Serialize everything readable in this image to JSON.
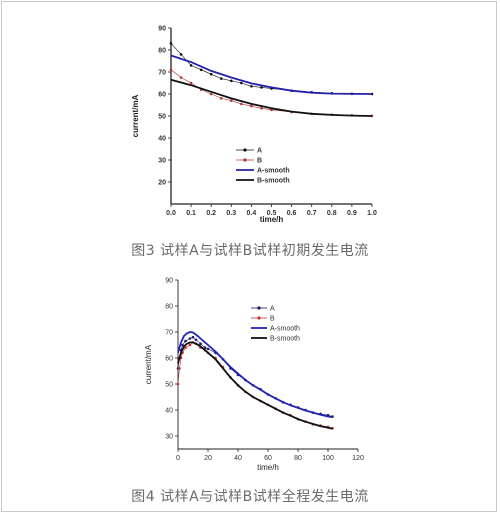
{
  "captions": {
    "fig3": "图3  试样A与试样B试样初期发生电流",
    "fig4": "图4 试样A与试样B试样全程发生电流"
  },
  "chart_data": [
    {
      "type": "line",
      "title": "",
      "xlabel": "time/h",
      "ylabel": "current/mA",
      "xlim": [
        0.0,
        1.0
      ],
      "ylim": [
        10,
        90
      ],
      "xticks": [
        "0.0",
        "0.1",
        "0.2",
        "0.3",
        "0.4",
        "0.5",
        "0.6",
        "0.7",
        "0.8",
        "0.9",
        "1.0"
      ],
      "yticks": [
        "20",
        "30",
        "40",
        "50",
        "60",
        "70",
        "80",
        "90"
      ],
      "grid": false,
      "legend_position": "center",
      "series": [
        {
          "name": "A",
          "color": "#111111",
          "style": "marker",
          "x": [
            0.0,
            0.05,
            0.1,
            0.15,
            0.2,
            0.25,
            0.3,
            0.35,
            0.4,
            0.45,
            0.5,
            0.6,
            0.7,
            0.8,
            0.9,
            1.0
          ],
          "y": [
            83,
            78,
            73,
            71,
            69,
            67,
            66,
            65,
            63.5,
            63,
            62.5,
            61.5,
            60.8,
            60.3,
            60.1,
            60
          ]
        },
        {
          "name": "B",
          "color": "#b33333",
          "style": "marker",
          "x": [
            0.0,
            0.05,
            0.1,
            0.15,
            0.2,
            0.25,
            0.3,
            0.35,
            0.4,
            0.45,
            0.5,
            0.6,
            0.7,
            0.8,
            0.9,
            1.0
          ],
          "y": [
            71,
            67.5,
            65,
            62,
            60,
            58,
            57,
            55.5,
            54.5,
            53.5,
            52.8,
            51.8,
            51,
            50.6,
            50.3,
            50.1
          ]
        },
        {
          "name": "A-smooth",
          "color": "#2222aa",
          "style": "line",
          "x": [
            0.0,
            0.1,
            0.2,
            0.3,
            0.4,
            0.5,
            0.6,
            0.7,
            0.8,
            0.9,
            1.0
          ],
          "y": [
            77.5,
            74.5,
            70.5,
            67.5,
            64.8,
            63,
            61.5,
            60.6,
            60.2,
            60.05,
            60
          ]
        },
        {
          "name": "B-smooth",
          "color": "#111111",
          "style": "line",
          "x": [
            0.0,
            0.1,
            0.2,
            0.3,
            0.4,
            0.5,
            0.6,
            0.7,
            0.8,
            0.9,
            1.0
          ],
          "y": [
            66.5,
            64,
            61,
            58,
            55.5,
            53.5,
            52,
            51,
            50.5,
            50.2,
            50
          ]
        }
      ]
    },
    {
      "type": "line",
      "title": "",
      "xlabel": "time/h",
      "ylabel": "current/mA",
      "xlim": [
        0,
        120
      ],
      "ylim": [
        25,
        90
      ],
      "xticks": [
        "0",
        "20",
        "40",
        "60",
        "80",
        "100",
        "120"
      ],
      "yticks": [
        "30",
        "40",
        "50",
        "60",
        "70",
        "80",
        "90"
      ],
      "grid": false,
      "legend_position": "top-right",
      "series": [
        {
          "name": "A",
          "color": "#1a1a66",
          "style": "marker",
          "x": [
            0,
            1,
            2,
            3,
            5,
            8,
            10,
            12,
            15,
            18,
            20,
            25,
            30,
            35,
            40,
            45,
            50,
            55,
            60,
            65,
            70,
            75,
            80,
            85,
            90,
            95,
            100,
            103
          ],
          "y": [
            56,
            60,
            63,
            65,
            66.5,
            67.5,
            68,
            67,
            65.5,
            64,
            63.5,
            62,
            59.5,
            56,
            53.5,
            51.5,
            49.5,
            48,
            46,
            44.5,
            43,
            42,
            41,
            40,
            39,
            38.5,
            38,
            37.5
          ]
        },
        {
          "name": "B",
          "color": "#c03030",
          "style": "marker",
          "x": [
            0,
            1,
            2,
            3,
            5,
            8,
            10,
            12,
            15,
            18,
            20,
            25,
            30,
            35,
            40,
            45,
            50,
            55,
            60,
            65,
            70,
            75,
            80,
            85,
            90,
            95,
            100,
            103
          ],
          "y": [
            50,
            56,
            60,
            62,
            64,
            65,
            66,
            65.5,
            64,
            63,
            62,
            60,
            56.5,
            52.5,
            49.5,
            47,
            45,
            43.5,
            42,
            40.5,
            39,
            38,
            36.5,
            35.5,
            34.5,
            34,
            33.5,
            33
          ]
        },
        {
          "name": "A-smooth",
          "color": "#2323b5",
          "style": "line",
          "x": [
            0,
            2,
            4,
            6,
            8,
            10,
            12,
            15,
            18,
            20,
            25,
            30,
            35,
            40,
            45,
            50,
            55,
            60,
            65,
            70,
            75,
            80,
            85,
            90,
            95,
            100,
            103
          ],
          "y": [
            62,
            66,
            68.5,
            69.5,
            70,
            69.8,
            69,
            67.5,
            66,
            65,
            62.5,
            59.5,
            56.5,
            54,
            51.5,
            49.5,
            47.8,
            46,
            44.5,
            43,
            41.8,
            40.8,
            39.8,
            39,
            38.2,
            37.5,
            37.2
          ]
        },
        {
          "name": "B-smooth",
          "color": "#111111",
          "style": "line",
          "x": [
            0,
            2,
            4,
            6,
            8,
            10,
            12,
            15,
            18,
            20,
            25,
            30,
            35,
            40,
            45,
            50,
            55,
            60,
            65,
            70,
            75,
            80,
            85,
            90,
            95,
            100,
            103
          ],
          "y": [
            58,
            62,
            64.5,
            65.5,
            66,
            66,
            65.5,
            64.5,
            63,
            62,
            59.5,
            56,
            52.5,
            49.5,
            47,
            45,
            43.5,
            42,
            40.5,
            39,
            37.8,
            36.5,
            35.5,
            34.6,
            33.8,
            33.2,
            32.8
          ]
        }
      ]
    }
  ]
}
